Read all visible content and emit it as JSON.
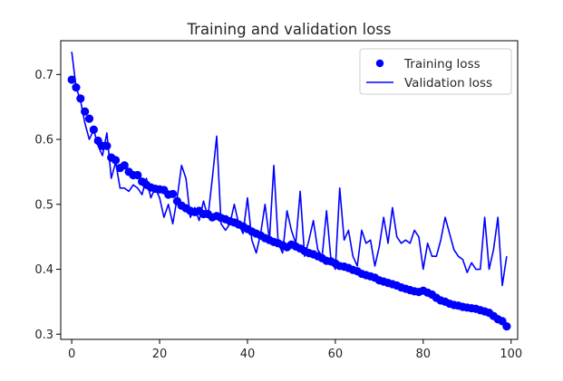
{
  "chart_data": {
    "type": "line",
    "title": "Training and validation loss",
    "xlabel": "",
    "ylabel": "",
    "xlim": [
      -2.5,
      101.5
    ],
    "ylim": [
      0.292,
      0.752
    ],
    "xticks": [
      0,
      20,
      40,
      60,
      80,
      100
    ],
    "yticks": [
      0.3,
      0.4,
      0.5,
      0.6,
      0.7
    ],
    "xtick_labels": [
      "0",
      "20",
      "40",
      "60",
      "80",
      "100"
    ],
    "ytick_labels": [
      "0.3",
      "0.4",
      "0.5",
      "0.6",
      "0.7"
    ],
    "grid": false,
    "legend_position": "top-right",
    "x": [
      0,
      1,
      2,
      3,
      4,
      5,
      6,
      7,
      8,
      9,
      10,
      11,
      12,
      13,
      14,
      15,
      16,
      17,
      18,
      19,
      20,
      21,
      22,
      23,
      24,
      25,
      26,
      27,
      28,
      29,
      30,
      31,
      32,
      33,
      34,
      35,
      36,
      37,
      38,
      39,
      40,
      41,
      42,
      43,
      44,
      45,
      46,
      47,
      48,
      49,
      50,
      51,
      52,
      53,
      54,
      55,
      56,
      57,
      58,
      59,
      60,
      61,
      62,
      63,
      64,
      65,
      66,
      67,
      68,
      69,
      70,
      71,
      72,
      73,
      74,
      75,
      76,
      77,
      78,
      79,
      80,
      81,
      82,
      83,
      84,
      85,
      86,
      87,
      88,
      89,
      90,
      91,
      92,
      93,
      94,
      95,
      96,
      97,
      98,
      99
    ],
    "series": [
      {
        "name": "Training loss",
        "style": "points",
        "color": "#0000ff",
        "values": [
          0.692,
          0.68,
          0.663,
          0.643,
          0.632,
          0.615,
          0.598,
          0.59,
          0.59,
          0.572,
          0.568,
          0.556,
          0.56,
          0.55,
          0.545,
          0.545,
          0.535,
          0.53,
          0.526,
          0.524,
          0.523,
          0.522,
          0.515,
          0.516,
          0.505,
          0.498,
          0.494,
          0.49,
          0.488,
          0.49,
          0.485,
          0.485,
          0.48,
          0.482,
          0.479,
          0.477,
          0.474,
          0.472,
          0.469,
          0.466,
          0.462,
          0.458,
          0.455,
          0.452,
          0.448,
          0.445,
          0.442,
          0.44,
          0.437,
          0.434,
          0.438,
          0.435,
          0.432,
          0.428,
          0.425,
          0.423,
          0.42,
          0.417,
          0.413,
          0.412,
          0.409,
          0.405,
          0.404,
          0.402,
          0.399,
          0.397,
          0.393,
          0.391,
          0.389,
          0.387,
          0.383,
          0.381,
          0.379,
          0.377,
          0.375,
          0.372,
          0.37,
          0.368,
          0.366,
          0.365,
          0.367,
          0.364,
          0.361,
          0.356,
          0.352,
          0.35,
          0.347,
          0.345,
          0.344,
          0.342,
          0.341,
          0.34,
          0.339,
          0.337,
          0.335,
          0.333,
          0.328,
          0.323,
          0.32,
          0.312
        ]
      },
      {
        "name": "Validation loss",
        "style": "line",
        "color": "#0000ff",
        "values": [
          0.735,
          0.68,
          0.66,
          0.625,
          0.6,
          0.615,
          0.59,
          0.575,
          0.61,
          0.54,
          0.565,
          0.525,
          0.525,
          0.52,
          0.53,
          0.525,
          0.515,
          0.54,
          0.51,
          0.525,
          0.51,
          0.48,
          0.5,
          0.47,
          0.51,
          0.56,
          0.54,
          0.48,
          0.495,
          0.475,
          0.505,
          0.48,
          0.54,
          0.605,
          0.47,
          0.46,
          0.47,
          0.5,
          0.47,
          0.455,
          0.51,
          0.445,
          0.425,
          0.455,
          0.5,
          0.445,
          0.56,
          0.44,
          0.425,
          0.49,
          0.46,
          0.44,
          0.52,
          0.42,
          0.445,
          0.475,
          0.43,
          0.42,
          0.49,
          0.415,
          0.4,
          0.525,
          0.445,
          0.46,
          0.42,
          0.405,
          0.46,
          0.44,
          0.445,
          0.405,
          0.435,
          0.48,
          0.44,
          0.495,
          0.45,
          0.44,
          0.445,
          0.44,
          0.46,
          0.45,
          0.4,
          0.44,
          0.42,
          0.42,
          0.445,
          0.48,
          0.455,
          0.43,
          0.42,
          0.415,
          0.395,
          0.41,
          0.4,
          0.4,
          0.48,
          0.4,
          0.43,
          0.48,
          0.375,
          0.42
        ]
      }
    ]
  }
}
